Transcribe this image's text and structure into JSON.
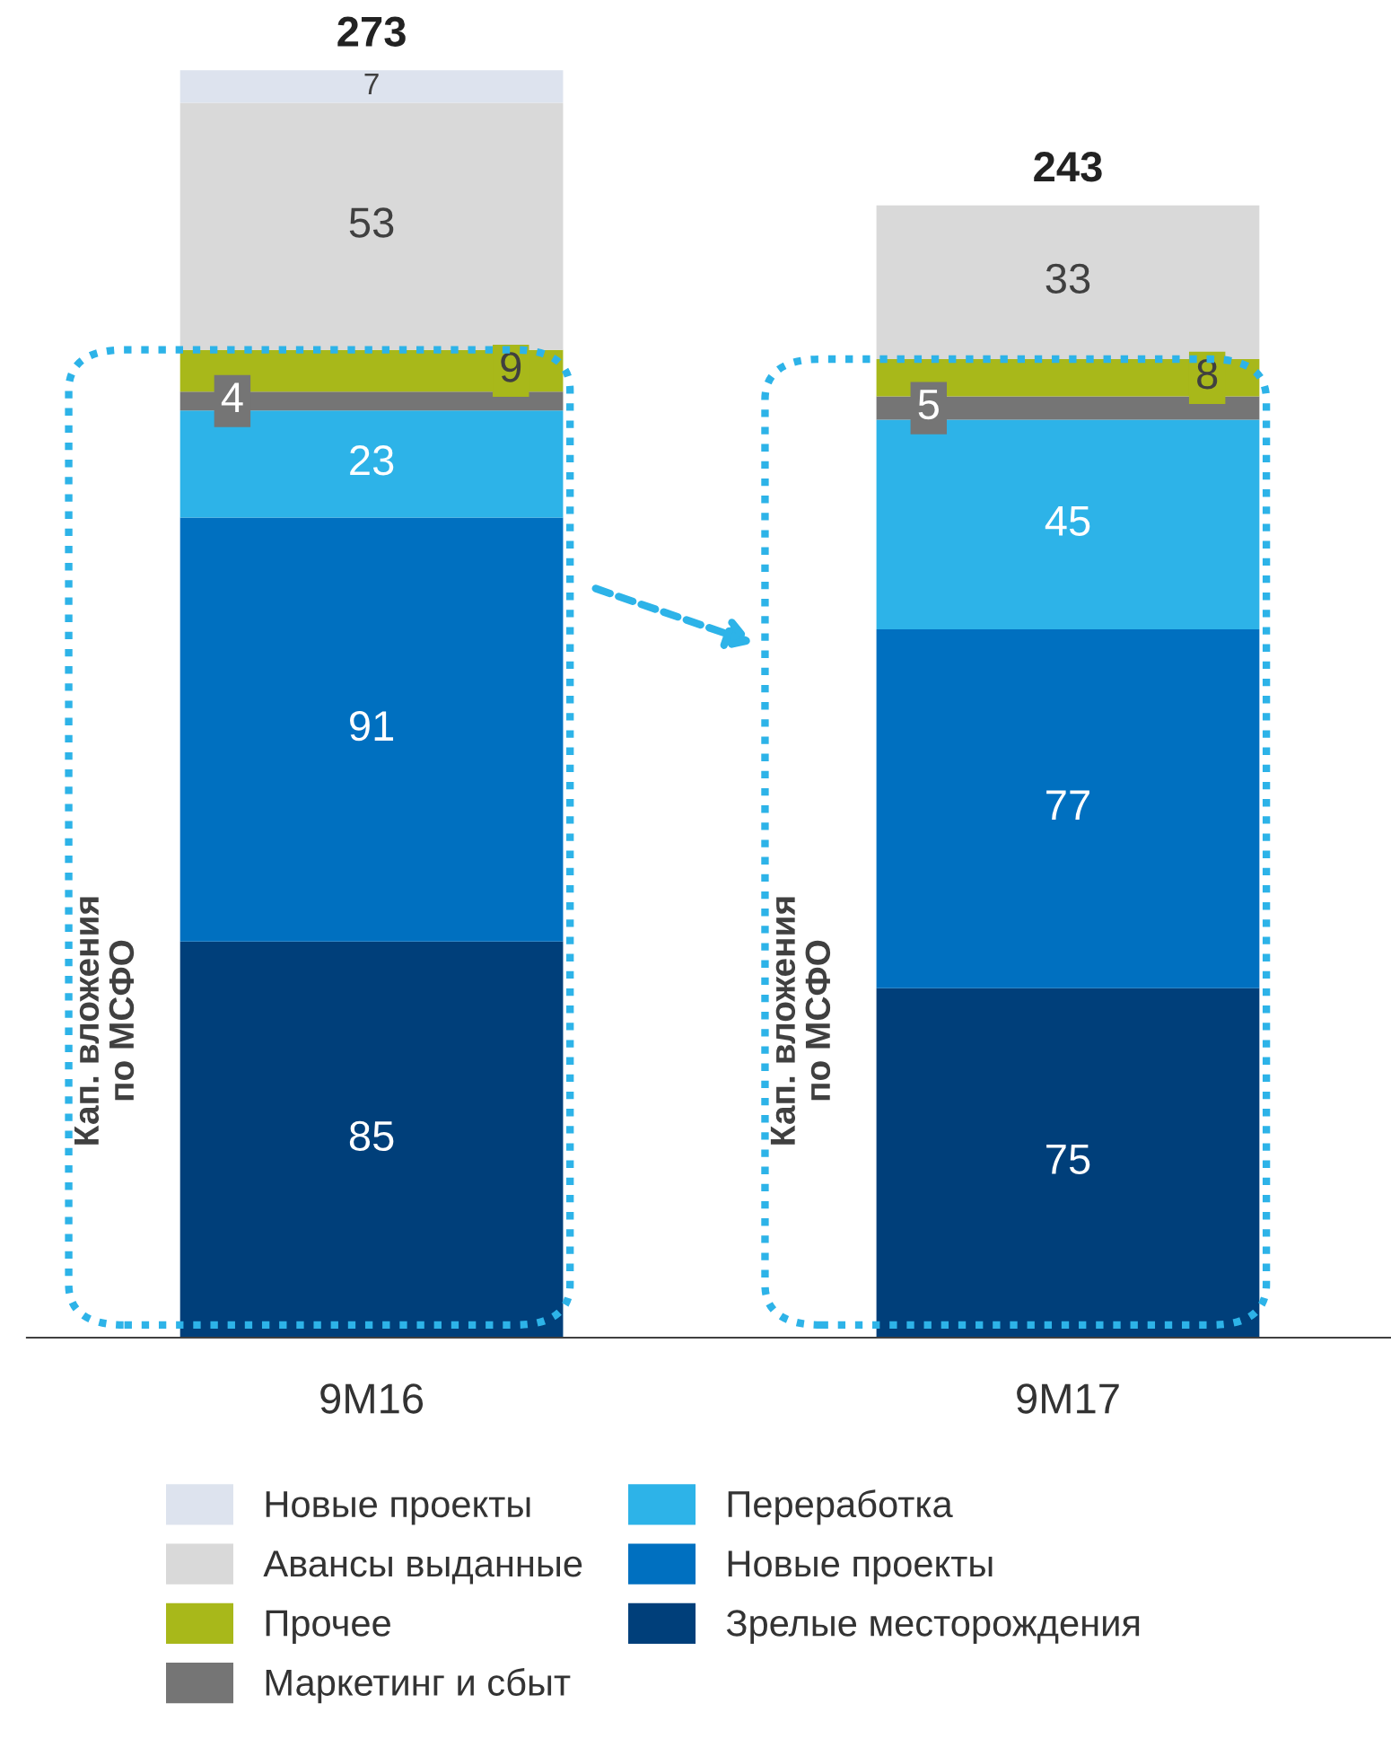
{
  "chart_data": {
    "type": "bar",
    "stacked": true,
    "categories": [
      "9M16",
      "9M17"
    ],
    "series": [
      {
        "name": "Зрелые месторождения",
        "color": "#003f7a",
        "values": [
          85,
          75
        ]
      },
      {
        "name": "Новые проекты",
        "color": "#0070c0",
        "values": [
          91,
          77
        ]
      },
      {
        "name": "Переработка",
        "color": "#2db3e8",
        "values": [
          23,
          45
        ]
      },
      {
        "name": "Маркетинг и сбыт",
        "color": "#757575",
        "values": [
          4,
          5
        ]
      },
      {
        "name": "Прочее",
        "color": "#a8b81a",
        "values": [
          9,
          8
        ]
      },
      {
        "name": "Авансы выданные",
        "color": "#d9d9d9",
        "values": [
          53,
          33
        ]
      },
      {
        "name": "Новые проекты",
        "color": "#dde3ee",
        "values": [
          7,
          null
        ]
      }
    ],
    "data_labels": true,
    "totals": [
      "273",
      "243"
    ],
    "legend": "bottom",
    "grid": false,
    "annotations": [
      "Кап. вложения\nпо МСФО",
      "Кап. вложения\nпо МСФО"
    ]
  }
}
